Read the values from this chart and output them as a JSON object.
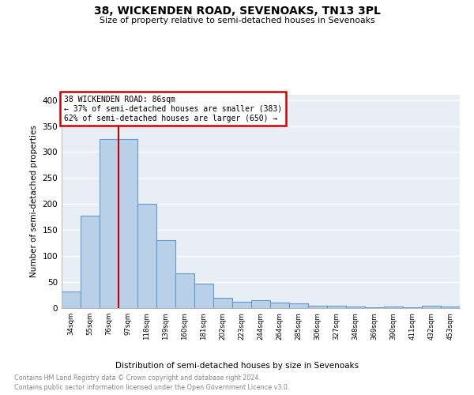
{
  "title": "38, WICKENDEN ROAD, SEVENOAKS, TN13 3PL",
  "subtitle": "Size of property relative to semi-detached houses in Sevenoaks",
  "xlabel": "Distribution of semi-detached houses by size in Sevenoaks",
  "ylabel": "Number of semi-detached properties",
  "categories": [
    "34sqm",
    "55sqm",
    "76sqm",
    "97sqm",
    "118sqm",
    "139sqm",
    "160sqm",
    "181sqm",
    "202sqm",
    "223sqm",
    "244sqm",
    "264sqm",
    "285sqm",
    "306sqm",
    "327sqm",
    "348sqm",
    "369sqm",
    "390sqm",
    "411sqm",
    "432sqm",
    "453sqm"
  ],
  "values": [
    32,
    177,
    325,
    325,
    200,
    130,
    67,
    47,
    20,
    12,
    15,
    10,
    9,
    5,
    4,
    3,
    1,
    3,
    1,
    4,
    3
  ],
  "bar_color": "#b8d0e8",
  "bar_edge_color": "#6699cc",
  "background_color": "#e8eef5",
  "grid_color": "#ffffff",
  "property_sqm": "86sqm",
  "pct_smaller": 37,
  "n_smaller": 383,
  "pct_larger": 62,
  "n_larger": 650,
  "annotation_box_color": "#cc0000",
  "ylim": [
    0,
    410
  ],
  "yticks": [
    0,
    50,
    100,
    150,
    200,
    250,
    300,
    350,
    400
  ],
  "footer_line1": "Contains HM Land Registry data © Crown copyright and database right 2024.",
  "footer_line2": "Contains public sector information licensed under the Open Government Licence v3.0."
}
